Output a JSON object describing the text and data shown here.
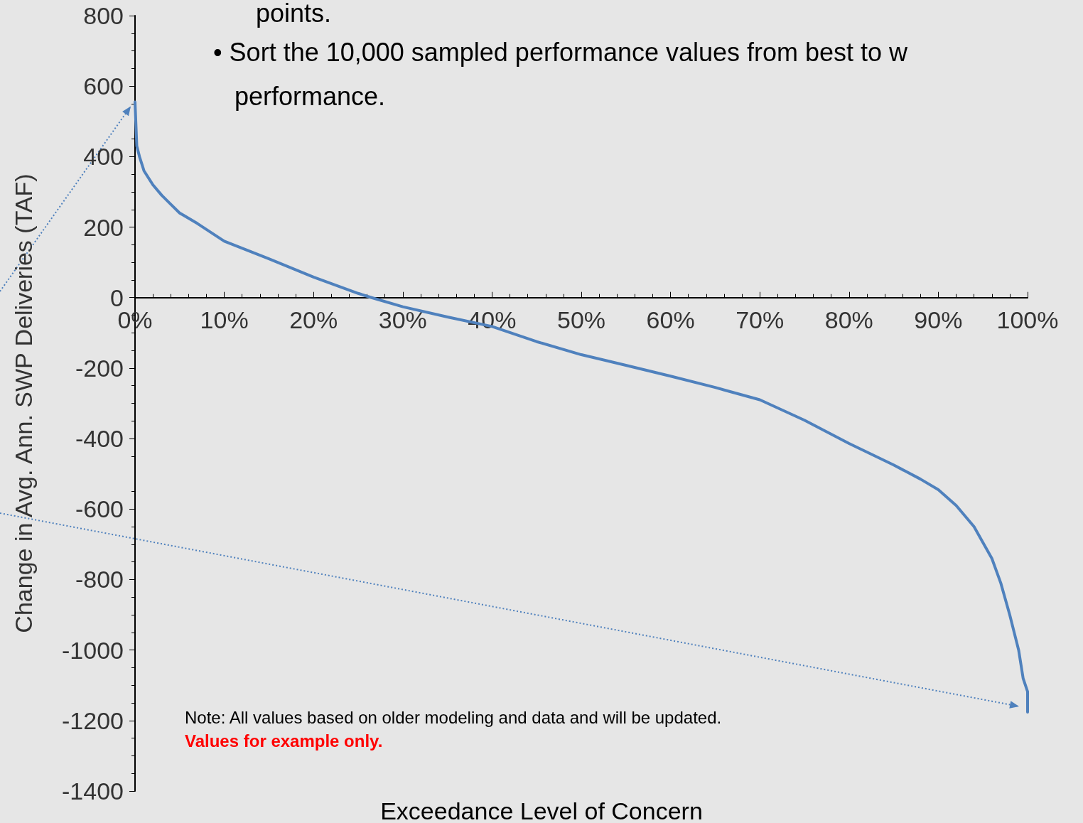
{
  "chart_data": {
    "type": "line",
    "xlabel": "Exceedance Level of Concern",
    "ylabel": "Change in Avg. Ann. SWP Deliveries (TAF)",
    "annotations": [
      "points.",
      "• Sort the 10,000 sampled performance values from best to w\n   performance.",
      "Note: All values based on older modeling and data and will be updated.",
      "Values for example only."
    ],
    "xlim": [
      0,
      100
    ],
    "xticks": [
      {
        "value": 0,
        "label": "0%"
      },
      {
        "value": 10,
        "label": "10%"
      },
      {
        "value": 20,
        "label": "20%"
      },
      {
        "value": 30,
        "label": "30%"
      },
      {
        "value": 40,
        "label": "40%"
      },
      {
        "value": 50,
        "label": "50%"
      },
      {
        "value": 60,
        "label": "60%"
      },
      {
        "value": 70,
        "label": "70%"
      },
      {
        "value": 80,
        "label": "80%"
      },
      {
        "value": 90,
        "label": "90%"
      },
      {
        "value": 100,
        "label": "100%"
      }
    ],
    "ylim": [
      -1400,
      800
    ],
    "yticks": [
      -1400,
      -1200,
      -1000,
      -800,
      -600,
      -400,
      -200,
      0,
      200,
      400,
      600,
      800
    ],
    "grid": false,
    "marker": "none",
    "line_style": "solid",
    "series": [
      {
        "color": "#4f81bd",
        "x": [
          0,
          0.2,
          0.5,
          1,
          2,
          3,
          4,
          5,
          7,
          10,
          15,
          20,
          25,
          26.5,
          30,
          35,
          40,
          45,
          50,
          55,
          60,
          65,
          70,
          75,
          80,
          85,
          88,
          90,
          92,
          94,
          96,
          97,
          98,
          99,
          99.5,
          100,
          100
        ],
        "values": [
          555,
          430,
          400,
          360,
          320,
          290,
          265,
          240,
          210,
          160,
          110,
          58,
          12,
          0,
          -26,
          -55,
          -82,
          -125,
          -162,
          -192,
          -223,
          -255,
          -290,
          -348,
          -414,
          -475,
          -515,
          -545,
          -590,
          -650,
          -740,
          -810,
          -900,
          -1000,
          -1080,
          -1118,
          -1176
        ]
      }
    ]
  }
}
